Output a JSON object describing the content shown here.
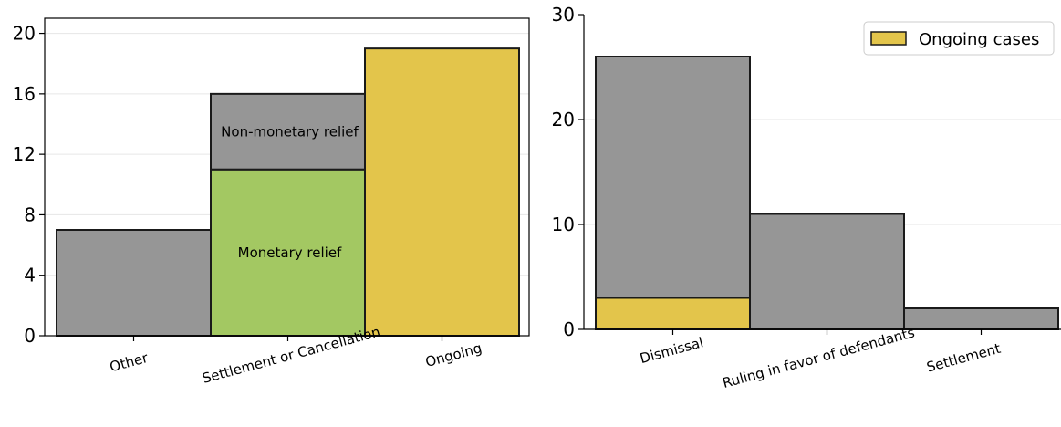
{
  "chart_data": [
    {
      "type": "bar",
      "stacked": true,
      "categories": [
        "Other",
        "Settlement or Cancellation",
        "Ongoing"
      ],
      "segments": [
        {
          "category": "Other",
          "bottom": 0,
          "value": 7,
          "color": "#969696",
          "label": ""
        },
        {
          "category": "Settlement or Cancellation",
          "bottom": 0,
          "value": 11,
          "color": "#a3c862",
          "label": "Monetary relief"
        },
        {
          "category": "Settlement or Cancellation",
          "bottom": 11,
          "value": 5,
          "color": "#969696",
          "label": "Non-monetary relief"
        },
        {
          "category": "Ongoing",
          "bottom": 0,
          "value": 19,
          "color": "#e3c54b",
          "label": ""
        }
      ],
      "ylim": [
        0,
        21
      ],
      "yticks": [
        0,
        4,
        8,
        12,
        16,
        20
      ],
      "grid": "horizontal",
      "legend": null
    },
    {
      "type": "bar",
      "stacked": true,
      "categories": [
        "Dismissal",
        "Ruling in favor of defendants",
        "Settlement"
      ],
      "series": [
        {
          "name": "Ongoing cases",
          "values": [
            3,
            0,
            0
          ],
          "color": "#e3c54b"
        },
        {
          "name": "",
          "values": [
            23,
            11,
            2
          ],
          "color": "#969696"
        }
      ],
      "ylim": [
        0,
        30
      ],
      "yticks": [
        0,
        10,
        20,
        30
      ],
      "grid": "horizontal",
      "legend": {
        "position": "top-right",
        "entries": [
          "Ongoing cases"
        ]
      }
    }
  ]
}
